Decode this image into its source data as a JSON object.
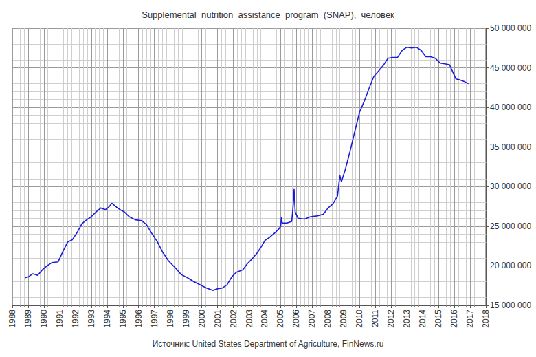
{
  "chart_data": {
    "type": "line",
    "title": "Supplemental  nutrition  assistance  program  (SNAP),  человек",
    "annotations": [
      "Источник: United States Department of Agriculture, FinNews.ru"
    ],
    "color": "#1a1adc",
    "grid": true,
    "xlim": [
      1988,
      2018
    ],
    "xticks": [
      1988,
      1989,
      1990,
      1991,
      1992,
      1993,
      1994,
      1995,
      1996,
      1997,
      1998,
      1999,
      2000,
      2001,
      2002,
      2003,
      2004,
      2005,
      2006,
      2007,
      2008,
      2009,
      2010,
      2011,
      2012,
      2013,
      2014,
      2015,
      2016,
      2017,
      2018
    ],
    "ylim": [
      15000000,
      50000000
    ],
    "yticks": [
      {
        "value": 15000000,
        "label": "15 000 000"
      },
      {
        "value": 20000000,
        "label": "20 000 000"
      },
      {
        "value": 25000000,
        "label": "25 000 000"
      },
      {
        "value": 30000000,
        "label": "30 000 000"
      },
      {
        "value": 35000000,
        "label": "35 000 000"
      },
      {
        "value": 40000000,
        "label": "40 000 000"
      },
      {
        "value": 45000000,
        "label": "45 000 000"
      },
      {
        "value": 50000000,
        "label": "50 000 000"
      }
    ],
    "x": [
      1988.8,
      1989.0,
      1989.3,
      1989.6,
      1989.9,
      1990.2,
      1990.5,
      1990.9,
      1991.2,
      1991.5,
      1991.8,
      1992.1,
      1992.4,
      1992.7,
      1993.0,
      1993.3,
      1993.6,
      1993.9,
      1994.1,
      1994.3,
      1994.6,
      1994.9,
      1995.1,
      1995.4,
      1995.8,
      1996.2,
      1996.5,
      1996.8,
      1997.2,
      1997.5,
      1997.9,
      1998.3,
      1998.7,
      1999.1,
      1999.5,
      1999.9,
      2000.3,
      2000.7,
      2001.0,
      2001.3,
      2001.6,
      2001.9,
      2002.2,
      2002.6,
      2002.9,
      2003.2,
      2003.5,
      2003.8,
      2004.0,
      2004.3,
      2004.6,
      2004.9,
      2005.0,
      2005.05,
      2005.1,
      2005.4,
      2005.7,
      2005.8,
      2005.85,
      2005.92,
      2006.1,
      2006.5,
      2006.9,
      2007.3,
      2007.7,
      2008.0,
      2008.3,
      2008.6,
      2008.75,
      2008.85,
      2009.1,
      2009.4,
      2009.7,
      2010.0,
      2010.3,
      2010.6,
      2010.9,
      2011.2,
      2011.5,
      2011.8,
      2012.1,
      2012.4,
      2012.7,
      2013.0,
      2013.3,
      2013.6,
      2013.9,
      2014.2,
      2014.5,
      2014.8,
      2015.1,
      2015.4,
      2015.7,
      2015.9,
      2016.1,
      2016.3,
      2016.6,
      2016.9
    ],
    "values": [
      18500000,
      18600000,
      19000000,
      18800000,
      19500000,
      20000000,
      20400000,
      20500000,
      21800000,
      23000000,
      23300000,
      24200000,
      25300000,
      25800000,
      26200000,
      26800000,
      27300000,
      27100000,
      27400000,
      27900000,
      27400000,
      27000000,
      26800000,
      26200000,
      25800000,
      25700000,
      25200000,
      24200000,
      23000000,
      21800000,
      20600000,
      19800000,
      18900000,
      18500000,
      18000000,
      17600000,
      17200000,
      16900000,
      17100000,
      17200000,
      17600000,
      18600000,
      19200000,
      19500000,
      20300000,
      20900000,
      21600000,
      22500000,
      23200000,
      23600000,
      24100000,
      24700000,
      25000000,
      26100000,
      25400000,
      25400000,
      25600000,
      27800000,
      29700000,
      26800000,
      26000000,
      25900000,
      26200000,
      26300000,
      26500000,
      27300000,
      27800000,
      28800000,
      31400000,
      30600000,
      32200000,
      34500000,
      37000000,
      39400000,
      40800000,
      42400000,
      43900000,
      44600000,
      45300000,
      46200000,
      46300000,
      46300000,
      47200000,
      47600000,
      47500000,
      47600000,
      47200000,
      46400000,
      46400000,
      46200000,
      45600000,
      45500000,
      45400000,
      44500000,
      43600000,
      43500000,
      43300000,
      43000000
    ]
  }
}
